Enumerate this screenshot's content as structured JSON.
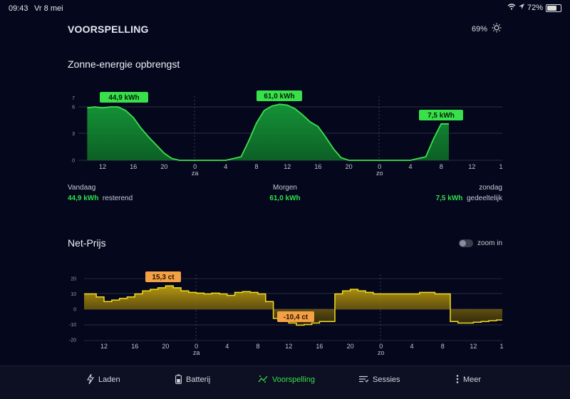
{
  "status": {
    "time": "09:43",
    "date": "Vr 8 mei",
    "battery": "72%"
  },
  "header": {
    "title": "VOORSPELLING",
    "brightness": "69%"
  },
  "solar": {
    "title": "Zonne-energie opbrengst",
    "y_ticks": [
      "7",
      "6",
      "3",
      "0"
    ],
    "x_ticks": [
      "12",
      "16",
      "20",
      "0",
      "4",
      "8",
      "12",
      "16",
      "20",
      "0",
      "4",
      "8",
      "12",
      "1"
    ],
    "day_labels": [
      "za",
      "zo"
    ],
    "badges": [
      "44,9 kWh",
      "61,0 kWh",
      "7,5 kWh"
    ],
    "summary": [
      {
        "day": "Vandaag",
        "value": "44,9 kWh",
        "note": "resterend"
      },
      {
        "day": "Morgen",
        "value": "61,0 kWh",
        "note": ""
      },
      {
        "day": "zondag",
        "value": "7,5 kWh",
        "note": "gedeeltelijk"
      }
    ]
  },
  "price": {
    "title": "Net-Prijs",
    "zoom_label": "zoom in",
    "y_ticks": [
      "20",
      "10",
      "0",
      "-10",
      "-20"
    ],
    "x_ticks": [
      "12",
      "16",
      "20",
      "0",
      "4",
      "8",
      "12",
      "16",
      "20",
      "0",
      "4",
      "8",
      "12",
      "1"
    ],
    "day_labels": [
      "za",
      "zo"
    ],
    "badges": [
      "15,3 ct",
      "-10,4 ct"
    ]
  },
  "tabs": [
    {
      "label": "Laden",
      "icon": "lightning-icon"
    },
    {
      "label": "Batterij",
      "icon": "battery-icon"
    },
    {
      "label": "Voorspelling",
      "icon": "forecast-icon"
    },
    {
      "label": "Sessies",
      "icon": "list-icon"
    },
    {
      "label": "Meer",
      "icon": "more-icon"
    }
  ],
  "colors": {
    "accent": "#38e04a",
    "price_line": "#f2dd1e",
    "badge_price": "#f4a045",
    "background": "#05071c"
  },
  "chart_data": [
    {
      "type": "area",
      "title": "Zonne-energie opbrengst",
      "xlabel": "",
      "ylabel": "",
      "x": [
        10,
        11,
        12,
        13,
        14,
        15,
        16,
        17,
        18,
        19,
        20,
        21,
        22,
        23,
        24,
        28,
        30,
        31,
        32,
        33,
        34,
        35,
        36,
        37,
        38,
        39,
        40,
        41,
        42,
        43,
        44,
        45,
        46,
        52,
        54,
        55,
        56,
        57
      ],
      "series": [
        {
          "values": [
            5.9,
            6.0,
            5.9,
            6.0,
            6.0,
            5.6,
            4.8,
            3.6,
            2.6,
            1.7,
            0.8,
            0.2,
            0.0,
            0.0,
            0.0,
            0.0,
            0.4,
            2.2,
            4.2,
            5.6,
            6.1,
            6.3,
            6.2,
            5.8,
            5.1,
            4.3,
            3.8,
            2.6,
            1.3,
            0.3,
            0.0,
            0.0,
            0.0,
            0.0,
            0.4,
            2.4,
            4.1,
            4.1
          ]
        }
      ],
      "ylim": [
        0,
        7
      ],
      "grid": true
    },
    {
      "type": "line",
      "title": "Net-Prijs",
      "xlabel": "",
      "ylabel": "",
      "x": [
        9.5,
        11,
        12,
        13,
        14,
        15,
        16,
        17,
        18,
        19,
        20,
        21,
        22,
        23,
        24,
        25,
        26,
        27,
        28,
        29,
        30,
        31,
        32,
        33,
        34,
        35,
        36,
        37,
        38,
        39,
        40,
        41,
        42,
        43,
        44,
        45,
        46,
        47,
        48,
        49,
        50,
        51,
        52,
        53,
        54,
        55,
        56,
        57,
        58,
        59,
        60,
        61,
        62,
        63
      ],
      "series": [
        {
          "values": [
            10,
            8,
            5,
            6,
            7,
            8,
            10,
            12,
            13,
            14,
            15.3,
            14,
            12,
            11,
            10.5,
            10,
            10.5,
            10,
            9,
            11,
            11.5,
            11,
            10,
            5,
            -6,
            -7,
            -9,
            -10.4,
            -10,
            -9,
            -8,
            -8,
            10,
            12,
            13,
            12,
            11,
            10,
            10,
            10,
            10,
            10,
            10,
            11,
            11,
            10,
            10,
            -8,
            -9,
            -9,
            -8.5,
            -8,
            -7.5,
            -7
          ]
        }
      ],
      "ylim": [
        -20,
        20
      ],
      "grid": true
    }
  ]
}
